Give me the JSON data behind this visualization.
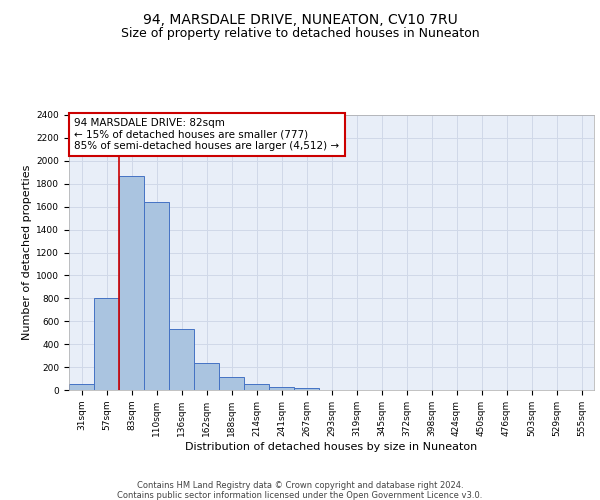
{
  "title": "94, MARSDALE DRIVE, NUNEATON, CV10 7RU",
  "subtitle": "Size of property relative to detached houses in Nuneaton",
  "xlabel": "Distribution of detached houses by size in Nuneaton",
  "ylabel": "Number of detached properties",
  "categories": [
    "31sqm",
    "57sqm",
    "83sqm",
    "110sqm",
    "136sqm",
    "162sqm",
    "188sqm",
    "214sqm",
    "241sqm",
    "267sqm",
    "293sqm",
    "319sqm",
    "345sqm",
    "372sqm",
    "398sqm",
    "424sqm",
    "450sqm",
    "476sqm",
    "503sqm",
    "529sqm",
    "555sqm"
  ],
  "values": [
    55,
    800,
    1870,
    1640,
    530,
    235,
    110,
    55,
    28,
    18,
    0,
    0,
    0,
    0,
    0,
    0,
    0,
    0,
    0,
    0,
    0
  ],
  "bar_color": "#aac4e0",
  "bar_edge_color": "#4472c4",
  "vline_color": "#cc0000",
  "annotation_text": "94 MARSDALE DRIVE: 82sqm\n← 15% of detached houses are smaller (777)\n85% of semi-detached houses are larger (4,512) →",
  "annotation_box_color": "#ffffff",
  "annotation_box_edge_color": "#cc0000",
  "ylim": [
    0,
    2400
  ],
  "yticks": [
    0,
    200,
    400,
    600,
    800,
    1000,
    1200,
    1400,
    1600,
    1800,
    2000,
    2200,
    2400
  ],
  "grid_color": "#d0d8e8",
  "background_color": "#e8eef8",
  "footer_line1": "Contains HM Land Registry data © Crown copyright and database right 2024.",
  "footer_line2": "Contains public sector information licensed under the Open Government Licence v3.0.",
  "title_fontsize": 10,
  "subtitle_fontsize": 9,
  "axis_label_fontsize": 8,
  "tick_fontsize": 6.5,
  "annotation_fontsize": 7.5,
  "footer_fontsize": 6
}
